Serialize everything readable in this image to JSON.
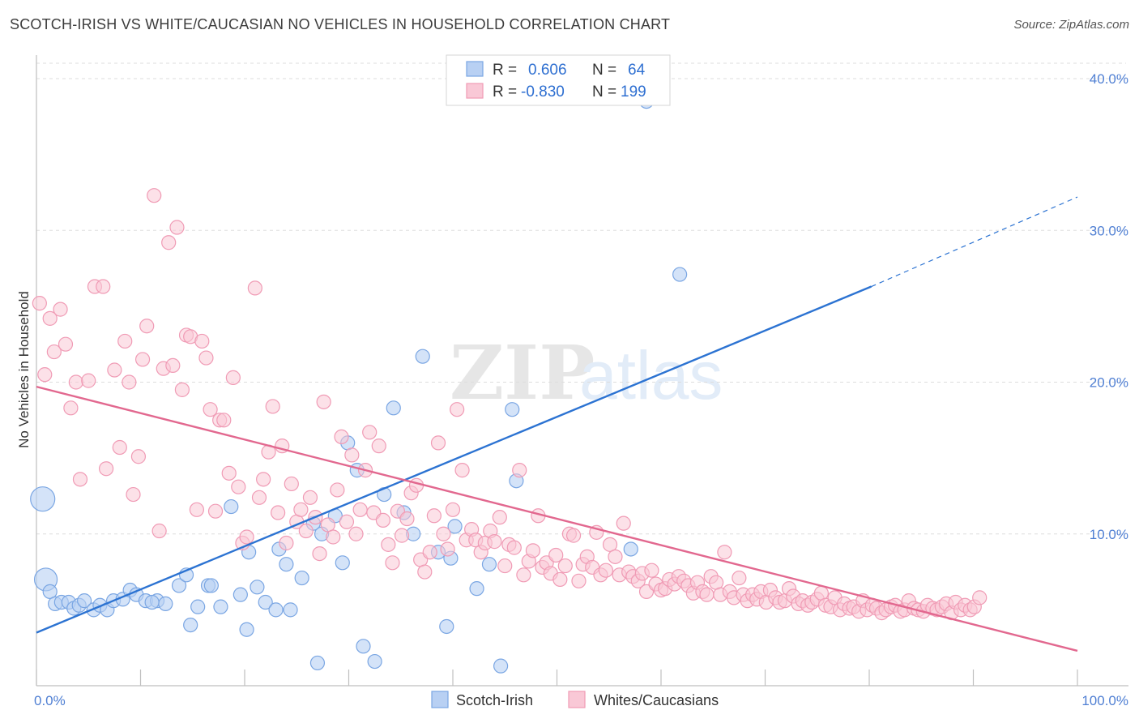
{
  "header": {
    "title": "SCOTCH-IRISH VS WHITE/CAUCASIAN NO VEHICLES IN HOUSEHOLD CORRELATION CHART",
    "source": "Source: ZipAtlas.com"
  },
  "watermark": {
    "zip": "ZIP",
    "atlas": "atlas"
  },
  "legend": {
    "r_label": "R =",
    "n_label": "N =",
    "rows": [
      {
        "r": "0.606",
        "n": "64"
      },
      {
        "r": "-0.830",
        "n": "199"
      }
    ]
  },
  "chart_data": {
    "type": "scatter",
    "ylabel": "No Vehicles in Household",
    "xlim": [
      0,
      100
    ],
    "ylim": [
      0,
      42
    ],
    "x_tick_labels": [
      "0.0%",
      "100.0%"
    ],
    "y_ticks": [
      10,
      20,
      30,
      40
    ],
    "y_tick_labels": [
      "10.0%",
      "20.0%",
      "30.0%",
      "40.0%"
    ],
    "grid": true,
    "colors": {
      "scotch_fill": "#b8d0f3",
      "scotch_stroke": "#7aa6e3",
      "scotch_line": "#2c73d2",
      "white_fill": "#f9c8d6",
      "white_stroke": "#f09bb5",
      "white_line": "#e2688f",
      "grid": "#dddddd",
      "axis": "#bfbfbf",
      "tick_label": "#4f7fd3"
    },
    "series": [
      {
        "name": "Scotch-Irish",
        "points": [
          [
            0.6,
            12.3
          ],
          [
            0.9,
            7.0
          ],
          [
            1.3,
            6.2
          ],
          [
            1.8,
            5.4
          ],
          [
            2.4,
            5.5
          ],
          [
            3.1,
            5.5
          ],
          [
            3.6,
            5.1
          ],
          [
            4.1,
            5.3
          ],
          [
            4.6,
            5.6
          ],
          [
            5.5,
            5.0
          ],
          [
            6.1,
            5.3
          ],
          [
            6.8,
            5.0
          ],
          [
            7.4,
            5.6
          ],
          [
            8.3,
            5.7
          ],
          [
            9.0,
            6.3
          ],
          [
            9.6,
            6.0
          ],
          [
            10.5,
            5.6
          ],
          [
            11.6,
            5.6
          ],
          [
            12.4,
            5.4
          ],
          [
            11.1,
            5.5
          ],
          [
            13.7,
            6.6
          ],
          [
            14.4,
            7.3
          ],
          [
            15.5,
            5.2
          ],
          [
            16.5,
            6.6
          ],
          [
            17.7,
            5.2
          ],
          [
            18.7,
            11.8
          ],
          [
            19.6,
            6.0
          ],
          [
            20.4,
            8.8
          ],
          [
            21.2,
            6.5
          ],
          [
            22.0,
            5.5
          ],
          [
            23.3,
            9.0
          ],
          [
            24.0,
            8.0
          ],
          [
            25.5,
            7.1
          ],
          [
            26.6,
            10.7
          ],
          [
            27.4,
            10.0
          ],
          [
            28.7,
            11.2
          ],
          [
            29.4,
            8.1
          ],
          [
            29.9,
            16.0
          ],
          [
            30.8,
            14.2
          ],
          [
            31.4,
            2.6
          ],
          [
            32.5,
            1.6
          ],
          [
            33.4,
            12.6
          ],
          [
            34.3,
            18.3
          ],
          [
            35.3,
            11.4
          ],
          [
            36.2,
            10.0
          ],
          [
            37.1,
            21.7
          ],
          [
            38.6,
            8.8
          ],
          [
            39.4,
            3.9
          ],
          [
            40.2,
            10.5
          ],
          [
            39.8,
            8.4
          ],
          [
            42.3,
            6.4
          ],
          [
            43.5,
            8.0
          ],
          [
            44.6,
            1.3
          ],
          [
            45.7,
            18.2
          ],
          [
            46.1,
            13.5
          ],
          [
            57.1,
            9.0
          ],
          [
            58.6,
            38.5
          ],
          [
            61.8,
            27.1
          ],
          [
            14.8,
            4.0
          ],
          [
            16.8,
            6.6
          ],
          [
            23.0,
            5.0
          ],
          [
            24.4,
            5.0
          ],
          [
            20.2,
            3.7
          ],
          [
            27.0,
            1.5
          ]
        ]
      },
      {
        "name": "Whites/Caucasians",
        "points": [
          [
            0.3,
            25.2
          ],
          [
            0.8,
            20.5
          ],
          [
            1.3,
            24.2
          ],
          [
            1.7,
            22.0
          ],
          [
            2.3,
            24.8
          ],
          [
            2.8,
            22.5
          ],
          [
            3.3,
            18.3
          ],
          [
            3.8,
            20.0
          ],
          [
            4.2,
            13.6
          ],
          [
            5.0,
            20.1
          ],
          [
            5.6,
            26.3
          ],
          [
            6.4,
            26.3
          ],
          [
            6.7,
            14.3
          ],
          [
            7.5,
            20.8
          ],
          [
            8.0,
            15.7
          ],
          [
            8.5,
            22.7
          ],
          [
            8.9,
            20.0
          ],
          [
            9.3,
            12.6
          ],
          [
            9.8,
            15.1
          ],
          [
            10.2,
            21.5
          ],
          [
            10.6,
            23.7
          ],
          [
            11.3,
            32.3
          ],
          [
            11.8,
            10.2
          ],
          [
            12.2,
            20.9
          ],
          [
            12.7,
            29.2
          ],
          [
            13.1,
            21.1
          ],
          [
            13.5,
            30.2
          ],
          [
            14.0,
            19.5
          ],
          [
            14.4,
            23.1
          ],
          [
            14.8,
            23.0
          ],
          [
            15.4,
            11.6
          ],
          [
            15.9,
            22.7
          ],
          [
            16.3,
            21.6
          ],
          [
            16.7,
            18.2
          ],
          [
            17.2,
            11.5
          ],
          [
            17.6,
            17.5
          ],
          [
            18.0,
            17.5
          ],
          [
            18.5,
            14.0
          ],
          [
            18.9,
            20.3
          ],
          [
            19.4,
            13.1
          ],
          [
            19.8,
            9.4
          ],
          [
            20.2,
            9.8
          ],
          [
            21.0,
            26.2
          ],
          [
            21.4,
            12.4
          ],
          [
            21.8,
            13.6
          ],
          [
            22.3,
            15.4
          ],
          [
            22.7,
            18.4
          ],
          [
            23.2,
            11.4
          ],
          [
            23.6,
            15.8
          ],
          [
            24.0,
            9.4
          ],
          [
            24.5,
            13.3
          ],
          [
            25.0,
            10.8
          ],
          [
            25.4,
            11.6
          ],
          [
            25.9,
            10.2
          ],
          [
            26.3,
            12.4
          ],
          [
            26.8,
            11.1
          ],
          [
            27.2,
            8.7
          ],
          [
            27.6,
            18.7
          ],
          [
            28.0,
            10.6
          ],
          [
            28.5,
            9.8
          ],
          [
            28.9,
            12.9
          ],
          [
            29.3,
            16.4
          ],
          [
            29.8,
            10.8
          ],
          [
            30.3,
            15.2
          ],
          [
            30.7,
            10.0
          ],
          [
            31.1,
            11.6
          ],
          [
            31.6,
            14.2
          ],
          [
            32.0,
            16.7
          ],
          [
            32.4,
            11.4
          ],
          [
            32.9,
            15.8
          ],
          [
            33.3,
            10.9
          ],
          [
            33.8,
            9.3
          ],
          [
            34.2,
            8.1
          ],
          [
            34.7,
            11.5
          ],
          [
            35.1,
            9.9
          ],
          [
            35.6,
            11.0
          ],
          [
            36.0,
            12.7
          ],
          [
            36.5,
            13.2
          ],
          [
            36.9,
            8.3
          ],
          [
            37.3,
            7.5
          ],
          [
            37.8,
            8.8
          ],
          [
            38.2,
            11.2
          ],
          [
            38.6,
            16.0
          ],
          [
            39.1,
            10.0
          ],
          [
            39.5,
            9.0
          ],
          [
            40.0,
            11.6
          ],
          [
            40.4,
            18.2
          ],
          [
            40.9,
            14.2
          ],
          [
            41.3,
            9.6
          ],
          [
            41.8,
            10.3
          ],
          [
            42.2,
            9.6
          ],
          [
            42.7,
            8.8
          ],
          [
            43.1,
            9.4
          ],
          [
            43.6,
            10.2
          ],
          [
            44.0,
            9.5
          ],
          [
            44.5,
            11.1
          ],
          [
            45.0,
            7.9
          ],
          [
            45.4,
            9.3
          ],
          [
            45.9,
            9.1
          ],
          [
            46.4,
            14.2
          ],
          [
            46.8,
            7.3
          ],
          [
            47.3,
            8.2
          ],
          [
            47.7,
            8.9
          ],
          [
            48.2,
            11.2
          ],
          [
            48.6,
            7.8
          ],
          [
            49.0,
            8.1
          ],
          [
            49.4,
            7.4
          ],
          [
            49.9,
            8.6
          ],
          [
            50.3,
            7.0
          ],
          [
            50.8,
            7.9
          ],
          [
            51.2,
            10.0
          ],
          [
            51.6,
            9.9
          ],
          [
            52.1,
            6.9
          ],
          [
            52.5,
            8.0
          ],
          [
            52.9,
            8.5
          ],
          [
            53.4,
            7.8
          ],
          [
            53.8,
            10.1
          ],
          [
            54.2,
            7.3
          ],
          [
            54.7,
            7.6
          ],
          [
            55.1,
            9.3
          ],
          [
            55.6,
            8.5
          ],
          [
            56.0,
            7.3
          ],
          [
            56.4,
            10.7
          ],
          [
            56.9,
            7.5
          ],
          [
            57.3,
            7.2
          ],
          [
            57.8,
            6.9
          ],
          [
            58.2,
            7.4
          ],
          [
            58.6,
            6.2
          ],
          [
            59.1,
            7.6
          ],
          [
            59.5,
            6.7
          ],
          [
            60.0,
            6.3
          ],
          [
            60.4,
            6.4
          ],
          [
            60.8,
            7.0
          ],
          [
            61.3,
            6.7
          ],
          [
            61.7,
            7.2
          ],
          [
            62.2,
            6.9
          ],
          [
            62.6,
            6.6
          ],
          [
            63.1,
            6.1
          ],
          [
            63.5,
            6.8
          ],
          [
            64.0,
            6.2
          ],
          [
            64.4,
            6.0
          ],
          [
            64.8,
            7.2
          ],
          [
            65.3,
            6.8
          ],
          [
            65.7,
            6.0
          ],
          [
            66.1,
            8.8
          ],
          [
            66.6,
            6.2
          ],
          [
            67.0,
            5.8
          ],
          [
            67.5,
            7.1
          ],
          [
            67.9,
            6.0
          ],
          [
            68.3,
            5.6
          ],
          [
            68.8,
            6.0
          ],
          [
            69.2,
            5.7
          ],
          [
            69.6,
            6.2
          ],
          [
            70.1,
            5.5
          ],
          [
            70.5,
            6.3
          ],
          [
            71.0,
            5.8
          ],
          [
            71.4,
            5.5
          ],
          [
            71.9,
            5.6
          ],
          [
            72.3,
            6.4
          ],
          [
            72.7,
            5.9
          ],
          [
            73.2,
            5.4
          ],
          [
            73.6,
            5.6
          ],
          [
            74.1,
            5.3
          ],
          [
            74.5,
            5.5
          ],
          [
            75.0,
            5.7
          ],
          [
            75.4,
            6.1
          ],
          [
            75.8,
            5.3
          ],
          [
            76.3,
            5.2
          ],
          [
            76.7,
            5.8
          ],
          [
            77.2,
            5.0
          ],
          [
            77.6,
            5.4
          ],
          [
            78.1,
            5.1
          ],
          [
            78.5,
            5.2
          ],
          [
            79.0,
            4.9
          ],
          [
            79.4,
            5.6
          ],
          [
            79.8,
            5.0
          ],
          [
            80.3,
            5.3
          ],
          [
            80.7,
            5.1
          ],
          [
            81.2,
            4.8
          ],
          [
            81.6,
            5.0
          ],
          [
            82.1,
            5.2
          ],
          [
            82.5,
            5.3
          ],
          [
            83.0,
            4.9
          ],
          [
            83.4,
            5.0
          ],
          [
            83.8,
            5.6
          ],
          [
            84.3,
            5.1
          ],
          [
            84.7,
            5.0
          ],
          [
            85.2,
            4.9
          ],
          [
            85.6,
            5.3
          ],
          [
            86.1,
            5.1
          ],
          [
            86.5,
            5.0
          ],
          [
            87.0,
            5.2
          ],
          [
            87.4,
            5.4
          ],
          [
            87.9,
            4.8
          ],
          [
            88.3,
            5.5
          ],
          [
            88.8,
            5.0
          ],
          [
            89.2,
            5.3
          ],
          [
            89.7,
            5.0
          ],
          [
            90.1,
            5.2
          ],
          [
            90.6,
            5.8
          ]
        ]
      }
    ],
    "trend_lines": [
      {
        "series": "Scotch-Irish",
        "x": [
          0,
          80.2
        ],
        "y": [
          3.5,
          26.3
        ],
        "dashed_to": [
          100,
          32.2
        ]
      },
      {
        "series": "Whites/Caucasians",
        "x": [
          0,
          100
        ],
        "y": [
          19.7,
          2.3
        ]
      }
    ]
  }
}
